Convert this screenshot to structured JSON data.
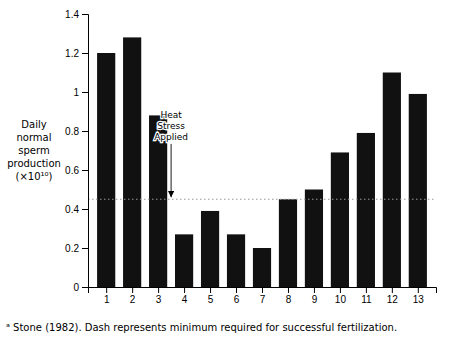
{
  "chart_data": {
    "type": "bar",
    "x": [
      1,
      2,
      3,
      4,
      5,
      6,
      7,
      8,
      9,
      10,
      11,
      12,
      13
    ],
    "values": [
      1.2,
      1.28,
      0.88,
      0.27,
      0.39,
      0.27,
      0.2,
      0.45,
      0.5,
      0.69,
      0.79,
      1.1,
      0.99
    ],
    "color": "#111111",
    "xlim": [
      0.3,
      13.7
    ],
    "xticks": [
      1,
      2,
      3,
      4,
      5,
      6,
      7,
      8,
      9,
      10,
      11,
      12,
      13
    ],
    "ylim": [
      0,
      1.4
    ],
    "yticks": [
      0,
      0.2,
      0.4,
      0.6,
      0.8,
      1,
      1.2,
      1.4
    ],
    "y_label": "Daily\nnormal\nsperm\nproduction\n(×10¹⁰)",
    "hline": {
      "y": 0.45,
      "color": "#999999",
      "line_style": "dotted"
    },
    "annotations": [
      {
        "text": "Heat\nStress\nApplied",
        "xy": [
          3.5,
          0.46
        ],
        "xytext": [
          3.5,
          0.9
        ]
      }
    ],
    "footnote": "ᵃ Stone (1982). Dash represents minimum required for successful fertilization.",
    "grid": false
  }
}
